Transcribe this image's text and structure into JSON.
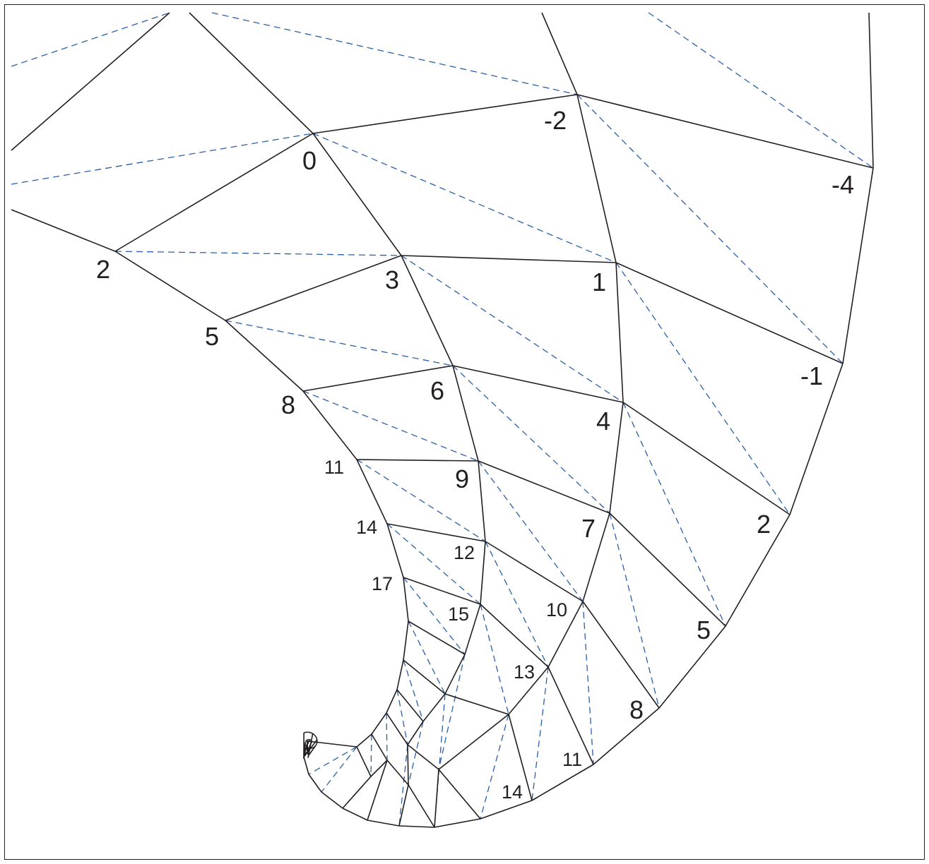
{
  "diagram": {
    "colors": {
      "edge": "#231f20",
      "diagonal": "#2a5fa8",
      "background": "#ffffff"
    },
    "labels_outer": {
      "c1": "-2",
      "c2": "-4",
      "c3": "1",
      "c4": "-1",
      "c5": "4",
      "c6": "7",
      "c7": "2",
      "c8": "10",
      "c9": "5",
      "c10": "13",
      "c11": "8",
      "c12": "11",
      "c13": "14"
    },
    "labels_inner": {
      "a0": "0",
      "a1": "2",
      "a2": "3",
      "a3": "5",
      "a4": "6",
      "a5": "8",
      "a6": "9",
      "a7": "11",
      "a8": "14",
      "a9": "12",
      "a10": "17",
      "a11": "15"
    }
  }
}
